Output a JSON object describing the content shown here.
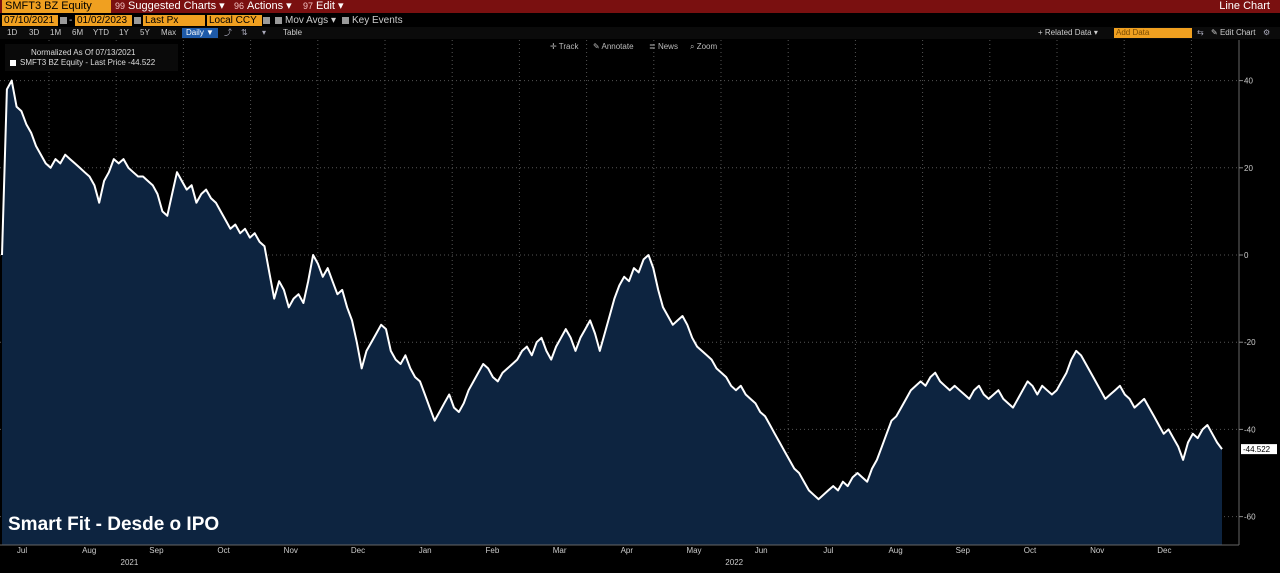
{
  "toolbar": {
    "ticker": "SMFT3 BZ Equity",
    "suggested": {
      "num": "99",
      "label": "Suggested Charts ▾"
    },
    "actions": {
      "num": "96",
      "label": "Actions ▾"
    },
    "edit": {
      "num": "97",
      "label": "Edit ▾"
    },
    "chart_type": "Line Chart"
  },
  "controls": {
    "start_date": "07/10/2021",
    "end_date": "01/02/2023",
    "field": "Last Px",
    "currency": "Local CCY",
    "mov_avgs": "Mov Avgs ▾",
    "key_events": "Key Events",
    "periods": [
      "1D",
      "3D",
      "1M",
      "6M",
      "YTD",
      "1Y",
      "5Y",
      "Max"
    ],
    "frequency": "Daily ▼",
    "table": "Table",
    "related_data": "+ Related Data ▾",
    "add_data_placeholder": "Add Data",
    "edit_chart": "Edit Chart",
    "tools": [
      "Track",
      "Annotate",
      "News",
      "Zoom"
    ]
  },
  "legend": {
    "title": "Normalized As Of 07/13/2021",
    "series": "SMFT3 BZ Equity - Last Price -44.522"
  },
  "caption": "Smart Fit - Desde o IPO",
  "colors": {
    "line": "#ffffff",
    "area": "#0d2440",
    "topbar": "#7a1010",
    "accent": "#f0a020"
  },
  "chart_data": {
    "type": "area",
    "title": "Smart Fit - Desde o IPO",
    "ylabel": "",
    "xlabel": "",
    "ylim": [
      -64,
      48
    ],
    "yticks": [
      40,
      20,
      0,
      -20,
      -40,
      -60
    ],
    "grid": true,
    "months": [
      "Jul",
      "Aug",
      "Sep",
      "Oct",
      "Nov",
      "Dec",
      "Jan",
      "Feb",
      "Mar",
      "Apr",
      "May",
      "Jun",
      "Jul",
      "Aug",
      "Sep",
      "Oct",
      "Nov",
      "Dec"
    ],
    "years": [
      {
        "label": "2021",
        "month_index": 2
      },
      {
        "label": "2022",
        "month_index": 11
      }
    ],
    "last_value_label": "-44.522",
    "series": [
      {
        "name": "SMFT3 BZ Equity - Last Price",
        "values": [
          0,
          38,
          40,
          34,
          33,
          30,
          28,
          25,
          23,
          21,
          20,
          22,
          21,
          23,
          22,
          21,
          20,
          19,
          18,
          16,
          12,
          17,
          19,
          22,
          21,
          22,
          20,
          19,
          18,
          18,
          17,
          16,
          14,
          10,
          9,
          14,
          19,
          17,
          15,
          16,
          12,
          14,
          15,
          13,
          12,
          10,
          8,
          6,
          7,
          5,
          6,
          4,
          5,
          3,
          2,
          -4,
          -10,
          -6,
          -8,
          -12,
          -10,
          -9,
          -11,
          -6,
          0,
          -2,
          -5,
          -3,
          -6,
          -9,
          -8,
          -12,
          -15,
          -20,
          -26,
          -22,
          -20,
          -18,
          -16,
          -17,
          -22,
          -24,
          -25,
          -23,
          -26,
          -28,
          -29,
          -32,
          -35,
          -38,
          -36,
          -34,
          -32,
          -35,
          -36,
          -34,
          -31,
          -29,
          -27,
          -25,
          -26,
          -28,
          -29,
          -27,
          -26,
          -25,
          -24,
          -22,
          -21,
          -23,
          -20,
          -19,
          -22,
          -24,
          -21,
          -19,
          -17,
          -19,
          -22,
          -19,
          -17,
          -15,
          -18,
          -22,
          -18,
          -14,
          -10,
          -7,
          -5,
          -6,
          -3,
          -4,
          -1,
          0,
          -3,
          -8,
          -12,
          -14,
          -16,
          -15,
          -14,
          -16,
          -19,
          -21,
          -22,
          -23,
          -24,
          -26,
          -27,
          -28,
          -30,
          -31,
          -30,
          -32,
          -33,
          -34,
          -36,
          -37,
          -39,
          -41,
          -43,
          -45,
          -47,
          -49,
          -50,
          -52,
          -54,
          -55,
          -56,
          -55,
          -54,
          -53,
          -54,
          -52,
          -53,
          -51,
          -50,
          -51,
          -52,
          -49,
          -47,
          -44,
          -41,
          -38,
          -37,
          -35,
          -33,
          -31,
          -30,
          -29,
          -30,
          -28,
          -27,
          -29,
          -30,
          -31,
          -30,
          -31,
          -32,
          -33,
          -31,
          -30,
          -32,
          -33,
          -32,
          -31,
          -33,
          -34,
          -35,
          -33,
          -31,
          -29,
          -30,
          -32,
          -30,
          -31,
          -32,
          -31,
          -29,
          -27,
          -24,
          -22,
          -23,
          -25,
          -27,
          -29,
          -31,
          -33,
          -32,
          -31,
          -30,
          -32,
          -33,
          -35,
          -34,
          -33,
          -35,
          -37,
          -39,
          -41,
          -40,
          -42,
          -44,
          -47,
          -43,
          -41,
          -42,
          -40,
          -39,
          -41,
          -43,
          -44.522
        ]
      }
    ]
  }
}
